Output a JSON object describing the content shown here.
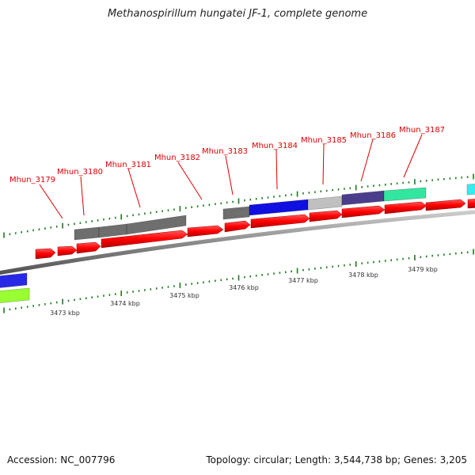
{
  "title": "Methanospirillum hungatei JF-1, complete genome",
  "footer": {
    "accession": "Accession: NC_007796",
    "summary": "Topology: circular; Length: 3,544,738 bp; Genes: 3,205"
  },
  "colors": {
    "backbone": "#8a8a8a",
    "gene_forward": "#ff0000",
    "gene_label": "#dd0000",
    "tick_green": "#1f7a1f",
    "axis_label": "#333333"
  },
  "gene_labels": [
    "Mhun_3179",
    "Mhun_3180",
    "Mhun_3181",
    "Mhun_3182",
    "Mhun_3183",
    "Mhun_3184",
    "Mhun_3185",
    "Mhun_3186",
    "Mhun_3187"
  ],
  "ruler_labels": [
    "3473 kbp",
    "3474 kbp",
    "3475 kbp",
    "3476 kbp",
    "3477 kbp",
    "3478 kbp",
    "3479 kbp"
  ],
  "features": {
    "cog_colors": [
      "#6e6e6e",
      "#6e6e6e",
      "#6e6e6e",
      "#1010e0",
      "#c0c0c0",
      "#4a3e8c",
      "#33e6a0"
    ],
    "edge_colors": [
      "#2828e6",
      "#99ff33",
      "#33eeee"
    ]
  }
}
